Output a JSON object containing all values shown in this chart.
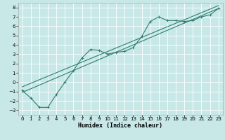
{
  "xlabel": "Humidex (Indice chaleur)",
  "ylabel": "",
  "bg_color": "#c8e8e8",
  "grid_color": "#ffffff",
  "line_color": "#2e7d6e",
  "xlim": [
    -0.5,
    23.5
  ],
  "ylim": [
    -3.5,
    8.5
  ],
  "xticks": [
    0,
    1,
    2,
    3,
    4,
    5,
    6,
    7,
    8,
    9,
    10,
    11,
    12,
    13,
    14,
    15,
    16,
    17,
    18,
    19,
    20,
    21,
    22,
    23
  ],
  "yticks": [
    -3,
    -2,
    -1,
    0,
    1,
    2,
    3,
    4,
    5,
    6,
    7,
    8
  ],
  "curve1_x": [
    0,
    1,
    2,
    3,
    4,
    5,
    6,
    7,
    8,
    9,
    10,
    11,
    12,
    13,
    14,
    15,
    16,
    17,
    18,
    19,
    20,
    21,
    22,
    23
  ],
  "curve1_y": [
    -0.9,
    -1.7,
    -2.7,
    -2.7,
    -1.3,
    -0.0,
    1.25,
    2.6,
    3.5,
    3.4,
    3.0,
    3.2,
    3.3,
    3.7,
    4.9,
    6.5,
    7.0,
    6.6,
    6.6,
    6.5,
    6.6,
    7.0,
    7.2,
    7.9
  ],
  "line2_x": [
    0,
    23
  ],
  "line2_y": [
    -1.1,
    7.9
  ],
  "line3_x": [
    0,
    23
  ],
  "line3_y": [
    -0.5,
    8.2
  ],
  "tick_fontsize": 5,
  "xlabel_fontsize": 6,
  "lw": 0.8
}
